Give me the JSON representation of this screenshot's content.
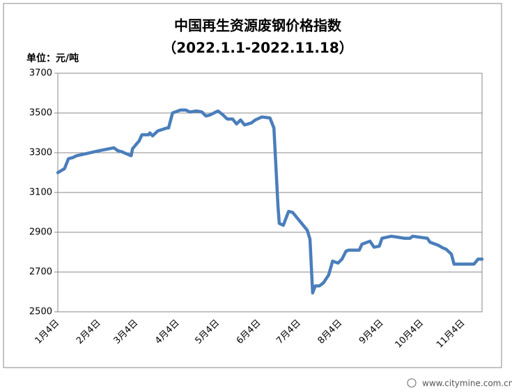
{
  "chart_data": {
    "type": "line",
    "title": "中国再生资源废钢价格指数",
    "subtitle": "（2022.1.1-2022.11.18）",
    "y_unit": "单位：元/吨",
    "watermark": "www.citymine.com.cn",
    "x": [
      "1月4日",
      "1月9日",
      "1月12日",
      "1月15日",
      "1月18日",
      "2月4日",
      "2月15日",
      "2月18日",
      "2月21日",
      "2月28日",
      "3月1日",
      "3月6日",
      "3月8日",
      "3月13日",
      "3月14日",
      "3月16日",
      "3月20日",
      "3月27日",
      "3月28日",
      "3月31日",
      "4月6日",
      "4月10日",
      "4月13日",
      "4月18日",
      "4月22日",
      "4月25日",
      "4月28日",
      "5月4日",
      "5月7日",
      "5月11日",
      "5月15日",
      "5月18日",
      "5月21日",
      "5月24日",
      "5月29日",
      "6月1日",
      "6月6日",
      "6月12日",
      "6月15日",
      "6月18日",
      "6月19日",
      "6月22日",
      "6月26日",
      "6月29日",
      "7月10日",
      "7月12日",
      "7月14日",
      "7月16日",
      "7月19日",
      "7月22日",
      "7月26日",
      "7月29日",
      "8月2日",
      "8月5日",
      "8月8日",
      "8月10日",
      "8月18日",
      "8月20日",
      "8月26日",
      "8月29日",
      "9月2日",
      "9月4日",
      "9月11日",
      "9月16日",
      "9月21日",
      "9月25日",
      "9月27日",
      "10月8日",
      "10月10日",
      "10月16日",
      "10月20日",
      "10月22日",
      "10月26日",
      "10月28日",
      "11月12日",
      "11月15日",
      "11月18日"
    ],
    "series": [
      {
        "name": "废钢价格指数",
        "color": "#4a7ebb",
        "values": [
          3200,
          3220,
          3270,
          3275,
          3285,
          3310,
          3325,
          3310,
          3305,
          3285,
          3320,
          3360,
          3390,
          3390,
          3400,
          3385,
          3410,
          3425,
          3425,
          3500,
          3515,
          3515,
          3505,
          3510,
          3505,
          3485,
          3490,
          3510,
          3495,
          3470,
          3470,
          3445,
          3465,
          3440,
          3450,
          3465,
          3480,
          3475,
          3425,
          3035,
          2945,
          2935,
          3005,
          3000,
          2910,
          2865,
          2595,
          2630,
          2630,
          2645,
          2685,
          2755,
          2745,
          2765,
          2805,
          2810,
          2810,
          2840,
          2855,
          2825,
          2830,
          2870,
          2880,
          2875,
          2870,
          2870,
          2880,
          2870,
          2850,
          2835,
          2820,
          2815,
          2790,
          2740,
          2740,
          2765,
          2765
        ]
      }
    ],
    "xlim": [
      "1月4日",
      "11月18日"
    ],
    "xticks": [
      "1月4日",
      "2月4日",
      "3月4日",
      "4月4日",
      "5月4日",
      "6月4日",
      "7月4日",
      "8月4日",
      "9月4日",
      "10月4日",
      "11月4日"
    ],
    "ylim": [
      2500,
      3700
    ],
    "yticks": [
      2500,
      2700,
      2900,
      3100,
      3300,
      3500,
      3700
    ],
    "grid": true
  }
}
